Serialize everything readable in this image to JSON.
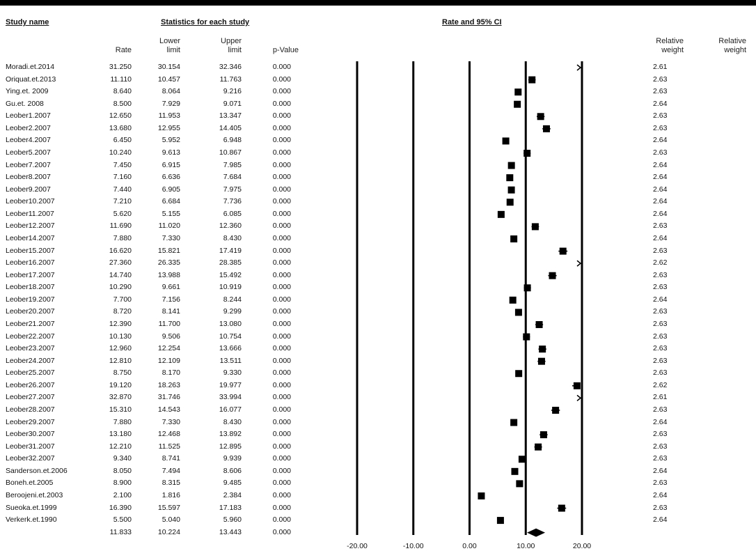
{
  "headers": {
    "study_name": "Study name",
    "statistics": "Statistics for each study",
    "rate_ci": "Rate and 95% CI"
  },
  "columns": {
    "rate": "Rate",
    "lower": [
      "Lower",
      "limit"
    ],
    "upper": [
      "Upper",
      "limit"
    ],
    "pvalue": "p-Value",
    "weight1": [
      "Relative",
      "weight"
    ],
    "weight2": [
      "Relative",
      "weight"
    ]
  },
  "colors": {
    "marker": "#000000",
    "axis": "#000000"
  },
  "chart_data": {
    "type": "forest",
    "xlabel": "",
    "xlim": [
      -20,
      20
    ],
    "xticks": [
      "-20.00",
      "-10.00",
      "0.00",
      "10.00",
      "20.00"
    ],
    "xtick_values": [
      -20,
      -10,
      0,
      10,
      20
    ],
    "studies": [
      {
        "name": "Moradi.et.2014",
        "rate": "31.250",
        "lower": "30.154",
        "upper": "32.346",
        "p": "0.000",
        "weight": "2.61"
      },
      {
        "name": "Oriquat.et.2013",
        "rate": "11.110",
        "lower": "10.457",
        "upper": "11.763",
        "p": "0.000",
        "weight": "2.63"
      },
      {
        "name": "Ying.et. 2009",
        "rate": "8.640",
        "lower": "8.064",
        "upper": "9.216",
        "p": "0.000",
        "weight": "2.63"
      },
      {
        "name": "Gu.et. 2008",
        "rate": "8.500",
        "lower": "7.929",
        "upper": "9.071",
        "p": "0.000",
        "weight": "2.64"
      },
      {
        "name": "Leober1.2007",
        "rate": "12.650",
        "lower": "11.953",
        "upper": "13.347",
        "p": "0.000",
        "weight": "2.63"
      },
      {
        "name": "Leober2.2007",
        "rate": "13.680",
        "lower": "12.955",
        "upper": "14.405",
        "p": "0.000",
        "weight": "2.63"
      },
      {
        "name": "Leober4.2007",
        "rate": "6.450",
        "lower": "5.952",
        "upper": "6.948",
        "p": "0.000",
        "weight": "2.64"
      },
      {
        "name": "Leober5.2007",
        "rate": "10.240",
        "lower": "9.613",
        "upper": "10.867",
        "p": "0.000",
        "weight": "2.63"
      },
      {
        "name": "Leober7.2007",
        "rate": "7.450",
        "lower": "6.915",
        "upper": "7.985",
        "p": "0.000",
        "weight": "2.64"
      },
      {
        "name": "Leober8.2007",
        "rate": "7.160",
        "lower": "6.636",
        "upper": "7.684",
        "p": "0.000",
        "weight": "2.64"
      },
      {
        "name": "Leober9.2007",
        "rate": "7.440",
        "lower": "6.905",
        "upper": "7.975",
        "p": "0.000",
        "weight": "2.64"
      },
      {
        "name": "Leober10.2007",
        "rate": "7.210",
        "lower": "6.684",
        "upper": "7.736",
        "p": "0.000",
        "weight": "2.64"
      },
      {
        "name": "Leober11.2007",
        "rate": "5.620",
        "lower": "5.155",
        "upper": "6.085",
        "p": "0.000",
        "weight": "2.64"
      },
      {
        "name": "Leober12.2007",
        "rate": "11.690",
        "lower": "11.020",
        "upper": "12.360",
        "p": "0.000",
        "weight": "2.63"
      },
      {
        "name": "Leober14.2007",
        "rate": "7.880",
        "lower": "7.330",
        "upper": "8.430",
        "p": "0.000",
        "weight": "2.64"
      },
      {
        "name": "Leober15.2007",
        "rate": "16.620",
        "lower": "15.821",
        "upper": "17.419",
        "p": "0.000",
        "weight": "2.63"
      },
      {
        "name": "Leober16.2007",
        "rate": "27.360",
        "lower": "26.335",
        "upper": "28.385",
        "p": "0.000",
        "weight": "2.62"
      },
      {
        "name": "Leober17.2007",
        "rate": "14.740",
        "lower": "13.988",
        "upper": "15.492",
        "p": "0.000",
        "weight": "2.63"
      },
      {
        "name": "Leober18.2007",
        "rate": "10.290",
        "lower": "9.661",
        "upper": "10.919",
        "p": "0.000",
        "weight": "2.63"
      },
      {
        "name": "Leober19.2007",
        "rate": "7.700",
        "lower": "7.156",
        "upper": "8.244",
        "p": "0.000",
        "weight": "2.64"
      },
      {
        "name": "Leober20.2007",
        "rate": "8.720",
        "lower": "8.141",
        "upper": "9.299",
        "p": "0.000",
        "weight": "2.63"
      },
      {
        "name": "Leober21.2007",
        "rate": "12.390",
        "lower": "11.700",
        "upper": "13.080",
        "p": "0.000",
        "weight": "2.63"
      },
      {
        "name": "Leober22.2007",
        "rate": "10.130",
        "lower": "9.506",
        "upper": "10.754",
        "p": "0.000",
        "weight": "2.63"
      },
      {
        "name": "Leober23.2007",
        "rate": "12.960",
        "lower": "12.254",
        "upper": "13.666",
        "p": "0.000",
        "weight": "2.63"
      },
      {
        "name": "Leober24.2007",
        "rate": "12.810",
        "lower": "12.109",
        "upper": "13.511",
        "p": "0.000",
        "weight": "2.63"
      },
      {
        "name": "Leober25.2007",
        "rate": "8.750",
        "lower": "8.170",
        "upper": "9.330",
        "p": "0.000",
        "weight": "2.63"
      },
      {
        "name": "Leober26.2007",
        "rate": "19.120",
        "lower": "18.263",
        "upper": "19.977",
        "p": "0.000",
        "weight": "2.62"
      },
      {
        "name": "Leober27.2007",
        "rate": "32.870",
        "lower": "31.746",
        "upper": "33.994",
        "p": "0.000",
        "weight": "2.61"
      },
      {
        "name": "Leober28.2007",
        "rate": "15.310",
        "lower": "14.543",
        "upper": "16.077",
        "p": "0.000",
        "weight": "2.63"
      },
      {
        "name": "Leober29.2007",
        "rate": "7.880",
        "lower": "7.330",
        "upper": "8.430",
        "p": "0.000",
        "weight": "2.64"
      },
      {
        "name": "Leober30.2007",
        "rate": "13.180",
        "lower": "12.468",
        "upper": "13.892",
        "p": "0.000",
        "weight": "2.63"
      },
      {
        "name": "Leober31.2007",
        "rate": "12.210",
        "lower": "11.525",
        "upper": "12.895",
        "p": "0.000",
        "weight": "2.63"
      },
      {
        "name": "Leober32.2007",
        "rate": "9.340",
        "lower": "8.741",
        "upper": "9.939",
        "p": "0.000",
        "weight": "2.63"
      },
      {
        "name": "Sanderson.et.2006",
        "rate": "8.050",
        "lower": "7.494",
        "upper": "8.606",
        "p": "0.000",
        "weight": "2.64"
      },
      {
        "name": "Boneh.et.2005",
        "rate": "8.900",
        "lower": "8.315",
        "upper": "9.485",
        "p": "0.000",
        "weight": "2.63"
      },
      {
        "name": "Beroojeni.et.2003",
        "rate": "2.100",
        "lower": "1.816",
        "upper": "2.384",
        "p": "0.000",
        "weight": "2.64"
      },
      {
        "name": "Sueoka.et.1999",
        "rate": "16.390",
        "lower": "15.597",
        "upper": "17.183",
        "p": "0.000",
        "weight": "2.63"
      },
      {
        "name": "Verkerk.et.1990",
        "rate": "5.500",
        "lower": "5.040",
        "upper": "5.960",
        "p": "0.000",
        "weight": "2.64"
      }
    ],
    "summary": {
      "rate": "11.833",
      "lower": "10.224",
      "upper": "13.443",
      "p": "0.000"
    }
  }
}
